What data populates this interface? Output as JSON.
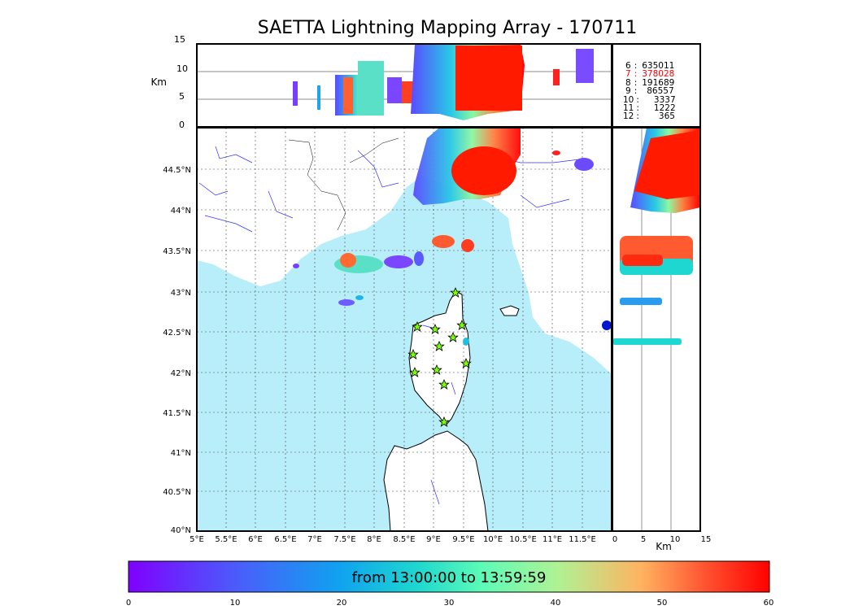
{
  "title": "SAETTA Lightning Mapping Array - 170711",
  "height_axis_label": "Km",
  "height_ticks": [
    "15",
    "10",
    "5",
    "0"
  ],
  "side_axis_label": "Km",
  "side_ticks": [
    "0",
    "5",
    "10",
    "15"
  ],
  "lat_ticks": [
    "44.5°N",
    "44°N",
    "43.5°N",
    "43°N",
    "42.5°N",
    "42°N",
    "41.5°N",
    "41°N",
    "40.5°N",
    "40°N"
  ],
  "lon_ticks": [
    "5°E",
    "5.5°E",
    "6°E",
    "6.5°E",
    "7°E",
    "7.5°E",
    "8°E",
    "8.5°E",
    "9°E",
    "9.5°E",
    "10°E",
    "10.5°E",
    "11°E",
    "11.5°E"
  ],
  "station_counts": [
    {
      "station": "6",
      "count": "635011",
      "color": "#000000"
    },
    {
      "station": "7",
      "count": "378028",
      "color": "#ff0000"
    },
    {
      "station": "8",
      "count": "191689",
      "color": "#000000"
    },
    {
      "station": "9",
      "count": "86557",
      "color": "#000000"
    },
    {
      "station": "10",
      "count": "3337",
      "color": "#000000"
    },
    {
      "station": "11",
      "count": "1222",
      "color": "#000000"
    },
    {
      "station": "12",
      "count": "365",
      "color": "#000000"
    }
  ],
  "colorbar": {
    "label": "from 13:00:00 to 13:59:59",
    "ticks": [
      "0",
      "10",
      "20",
      "30",
      "40",
      "50",
      "60"
    ],
    "range": [
      0,
      60
    ]
  },
  "colors": {
    "sea": "#b8eefa",
    "star": "#7cfc00"
  }
}
